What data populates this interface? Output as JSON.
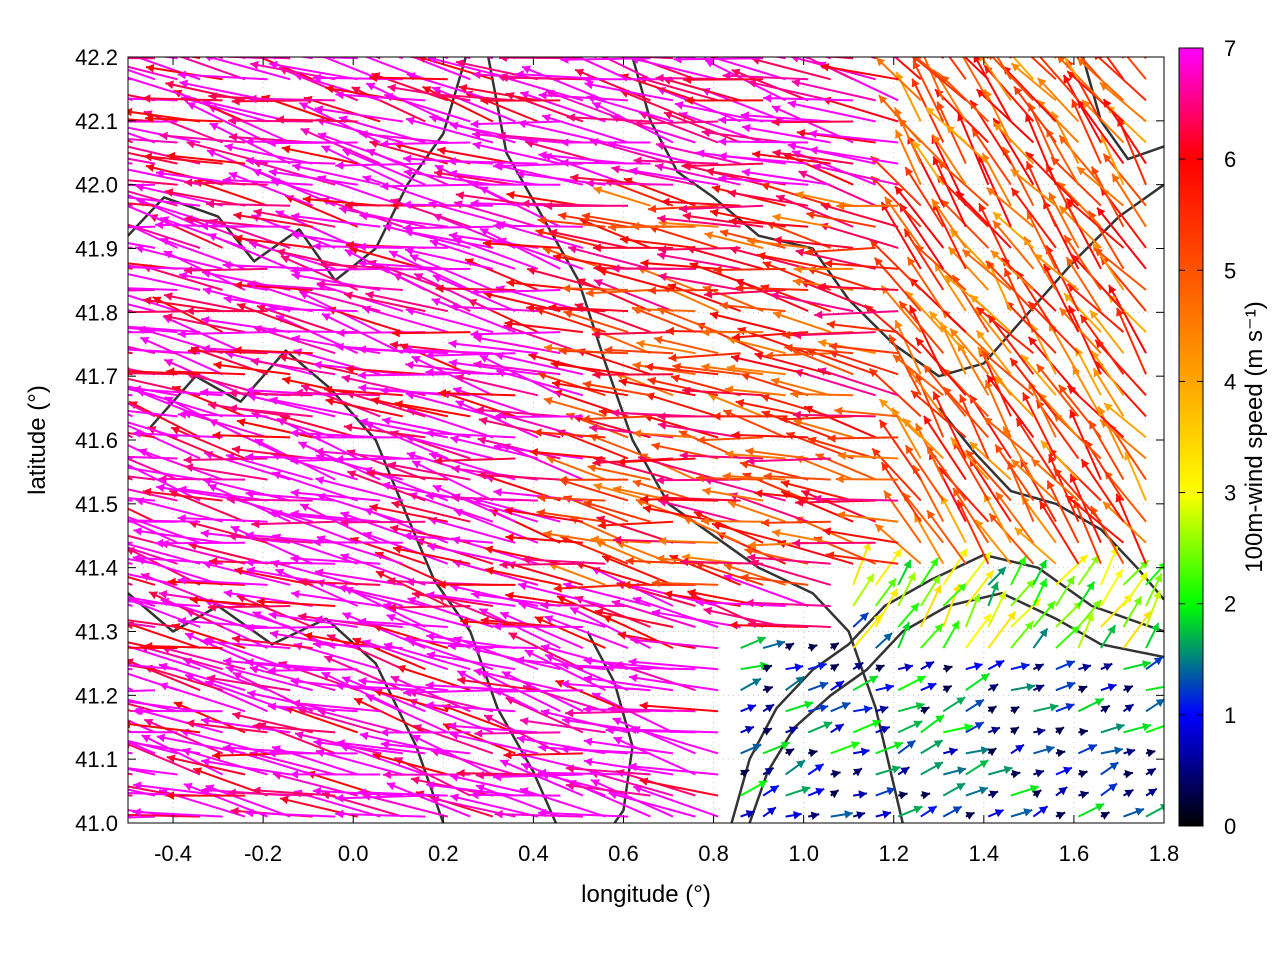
{
  "chart_data": {
    "type": "vector-field",
    "xlabel": "longitude (°)",
    "ylabel": "latitude (°)",
    "colorbar_label": "100m-wind speed (m s⁻¹)",
    "xlim": [
      -0.5,
      1.8
    ],
    "ylim": [
      41.0,
      42.2
    ],
    "x_ticks": [
      -0.4,
      -0.2,
      0.0,
      0.2,
      0.4,
      0.6,
      0.8,
      1.0,
      1.2,
      1.4,
      1.6,
      1.8
    ],
    "x_tick_labels": [
      "-0.4",
      "-0.2",
      "0.0",
      "0.2",
      "0.4",
      "0.6",
      "0.8",
      "1.0",
      "1.2",
      "1.4",
      "1.6",
      "1.8"
    ],
    "y_ticks": [
      41.0,
      41.1,
      41.2,
      41.3,
      41.4,
      41.5,
      41.6,
      41.7,
      41.8,
      41.9,
      42.0,
      42.1,
      42.2
    ],
    "y_tick_labels": [
      "41.0",
      "41.1",
      "41.2",
      "41.3",
      "41.4",
      "41.5",
      "41.6",
      "41.7",
      "41.8",
      "41.9",
      "42.0",
      "42.1",
      "42.2"
    ],
    "colorbar_range": [
      0,
      7
    ],
    "colorbar_ticks": [
      0,
      1,
      2,
      3,
      4,
      5,
      6,
      7
    ],
    "colorbar_tick_labels": [
      "0",
      "1",
      "2",
      "3",
      "4",
      "5",
      "6",
      "7"
    ],
    "colormap": [
      {
        "value": 0.0,
        "color": "#000000"
      },
      {
        "value": 1.0,
        "color": "#0000ff"
      },
      {
        "value": 2.0,
        "color": "#00ff00"
      },
      {
        "value": 3.0,
        "color": "#ffff00"
      },
      {
        "value": 4.0,
        "color": "#ffa500"
      },
      {
        "value": 6.0,
        "color": "#ff0000"
      },
      {
        "value": 7.0,
        "color": "#ff00ff"
      }
    ],
    "grid": true,
    "contour_color": "#333333",
    "wind_regions": [
      {
        "lon": [
          -0.5,
          0.55
        ],
        "lat": [
          41.0,
          42.2
        ],
        "speed": 7.0,
        "u": -1.0,
        "v": 0.22
      },
      {
        "lon": [
          0.55,
          1.25
        ],
        "lat": [
          41.35,
          42.0
        ],
        "speed": 5.5,
        "u": -1.0,
        "v": 0.18
      },
      {
        "lon": [
          1.25,
          1.8
        ],
        "lat": [
          41.35,
          42.2
        ],
        "speed": 5.0,
        "u": -0.6,
        "v": 0.8
      },
      {
        "lon": [
          0.85,
          1.8
        ],
        "lat": [
          41.0,
          41.3
        ],
        "speed": 1.0,
        "u": 0.7,
        "v": 0.3
      },
      {
        "lon": [
          1.1,
          1.8
        ],
        "lat": [
          41.25,
          41.4
        ],
        "speed": 2.3,
        "u": 0.4,
        "v": 0.6
      }
    ],
    "contours": [
      [
        [
          -0.5,
          41.92
        ],
        [
          -0.42,
          41.98
        ],
        [
          -0.3,
          41.95
        ],
        [
          -0.22,
          41.88
        ],
        [
          -0.12,
          41.93
        ],
        [
          -0.04,
          41.85
        ],
        [
          0.05,
          41.9
        ],
        [
          0.12,
          42.0
        ],
        [
          0.2,
          42.08
        ],
        [
          0.25,
          42.2
        ]
      ],
      [
        [
          -0.45,
          41.62
        ],
        [
          -0.35,
          41.7
        ],
        [
          -0.25,
          41.66
        ],
        [
          -0.15,
          41.74
        ],
        [
          -0.05,
          41.68
        ],
        [
          0.05,
          41.6
        ],
        [
          0.12,
          41.48
        ],
        [
          0.18,
          41.38
        ],
        [
          0.26,
          41.3
        ],
        [
          0.32,
          41.18
        ],
        [
          0.4,
          41.08
        ],
        [
          0.45,
          41.0
        ]
      ],
      [
        [
          -0.5,
          41.36
        ],
        [
          -0.4,
          41.3
        ],
        [
          -0.3,
          41.34
        ],
        [
          -0.18,
          41.28
        ],
        [
          -0.06,
          41.32
        ],
        [
          0.05,
          41.25
        ],
        [
          0.14,
          41.12
        ],
        [
          0.2,
          41.0
        ]
      ],
      [
        [
          0.3,
          42.2
        ],
        [
          0.34,
          42.05
        ],
        [
          0.42,
          41.95
        ],
        [
          0.5,
          41.85
        ],
        [
          0.56,
          41.72
        ],
        [
          0.62,
          41.6
        ],
        [
          0.7,
          41.5
        ],
        [
          0.8,
          41.45
        ],
        [
          0.9,
          41.4
        ],
        [
          1.02,
          41.36
        ],
        [
          1.1,
          41.3
        ],
        [
          1.16,
          41.18
        ],
        [
          1.2,
          41.06
        ],
        [
          1.22,
          41.0
        ]
      ],
      [
        [
          0.62,
          42.2
        ],
        [
          0.66,
          42.1
        ],
        [
          0.72,
          42.02
        ],
        [
          0.8,
          41.98
        ],
        [
          0.9,
          41.92
        ],
        [
          1.02,
          41.9
        ],
        [
          1.1,
          41.82
        ],
        [
          1.2,
          41.75
        ],
        [
          1.3,
          41.7
        ],
        [
          1.4,
          41.72
        ],
        [
          1.5,
          41.8
        ],
        [
          1.6,
          41.88
        ],
        [
          1.7,
          41.95
        ],
        [
          1.8,
          42.0
        ]
      ],
      [
        [
          0.88,
          41.0
        ],
        [
          0.92,
          41.08
        ],
        [
          0.98,
          41.15
        ],
        [
          1.06,
          41.2
        ],
        [
          1.14,
          41.24
        ],
        [
          1.22,
          41.3
        ],
        [
          1.32,
          41.34
        ],
        [
          1.44,
          41.36
        ],
        [
          1.56,
          41.32
        ],
        [
          1.66,
          41.28
        ],
        [
          1.8,
          41.26
        ]
      ],
      [
        [
          0.84,
          41.0
        ],
        [
          0.88,
          41.1
        ],
        [
          0.94,
          41.18
        ],
        [
          1.02,
          41.24
        ],
        [
          1.1,
          41.28
        ],
        [
          1.18,
          41.34
        ],
        [
          1.28,
          41.38
        ],
        [
          1.4,
          41.42
        ],
        [
          1.52,
          41.4
        ],
        [
          1.64,
          41.34
        ],
        [
          1.8,
          41.3
        ]
      ],
      [
        [
          1.3,
          41.65
        ],
        [
          1.38,
          41.58
        ],
        [
          1.46,
          41.52
        ],
        [
          1.56,
          41.5
        ],
        [
          1.66,
          41.46
        ],
        [
          1.74,
          41.4
        ],
        [
          1.8,
          41.35
        ]
      ],
      [
        [
          1.62,
          42.2
        ],
        [
          1.66,
          42.1
        ],
        [
          1.72,
          42.04
        ],
        [
          1.8,
          42.06
        ]
      ],
      [
        [
          0.52,
          41.3
        ],
        [
          0.58,
          41.22
        ],
        [
          0.62,
          41.12
        ],
        [
          0.6,
          41.02
        ],
        [
          0.58,
          41.0
        ]
      ]
    ]
  }
}
